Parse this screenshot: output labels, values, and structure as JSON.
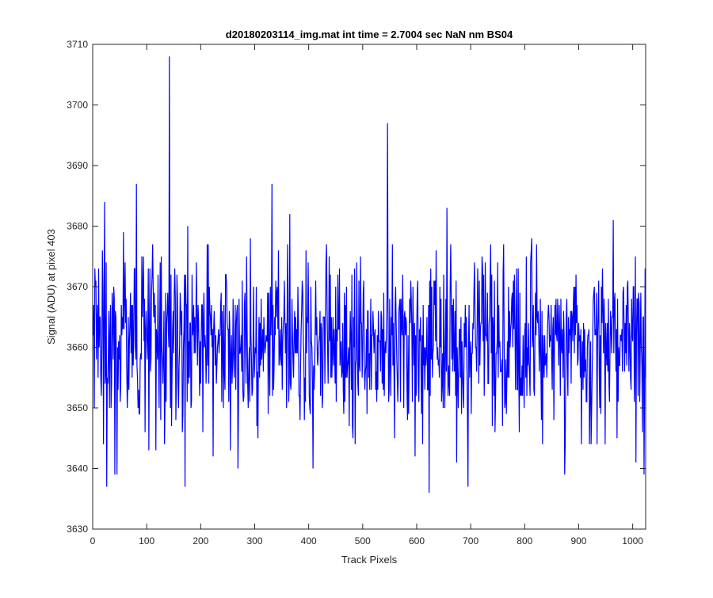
{
  "chart_data": {
    "type": "line",
    "title": "d20180203114_img.mat int time = 2.7004 sec  NaN nm BS04",
    "xlabel": "Track Pixels",
    "ylabel": "Signal (ADU) at pixel 403",
    "xlim": [
      0,
      1024
    ],
    "ylim": [
      3630,
      3710
    ],
    "xticks": [
      0,
      100,
      200,
      300,
      400,
      500,
      600,
      700,
      800,
      900,
      1000
    ],
    "yticks": [
      3630,
      3640,
      3650,
      3660,
      3670,
      3680,
      3690,
      3700,
      3710
    ],
    "grid": false,
    "legend": "none",
    "series": [
      {
        "color": "#0000ff",
        "noise": {
          "n": 1024,
          "mean": 3661,
          "min": 3644,
          "max": 3677
        },
        "peaks": [
          {
            "x": 3,
            "y": 3673
          },
          {
            "x": 6,
            "y": 3658
          },
          {
            "x": 10,
            "y": 3673
          },
          {
            "x": 14,
            "y": 3655
          },
          {
            "x": 17,
            "y": 3676
          },
          {
            "x": 19,
            "y": 3644
          },
          {
            "x": 21,
            "y": 3684
          },
          {
            "x": 25,
            "y": 3637
          },
          {
            "x": 30,
            "y": 3650
          },
          {
            "x": 35,
            "y": 3669
          },
          {
            "x": 40,
            "y": 3639
          },
          {
            "x": 44,
            "y": 3639
          },
          {
            "x": 50,
            "y": 3651
          },
          {
            "x": 56,
            "y": 3679
          },
          {
            "x": 63,
            "y": 3650
          },
          {
            "x": 69,
            "y": 3669
          },
          {
            "x": 76,
            "y": 3673
          },
          {
            "x": 80,
            "y": 3687
          },
          {
            "x": 90,
            "y": 3675
          },
          {
            "x": 96,
            "y": 3646
          },
          {
            "x": 103,
            "y": 3643
          },
          {
            "x": 110,
            "y": 3677
          },
          {
            "x": 116,
            "y": 3643
          },
          {
            "x": 124,
            "y": 3674
          },
          {
            "x": 132,
            "y": 3644
          },
          {
            "x": 141,
            "y": 3708
          },
          {
            "x": 143,
            "y": 3650
          },
          {
            "x": 150,
            "y": 3669
          },
          {
            "x": 158,
            "y": 3650
          },
          {
            "x": 165,
            "y": 3646
          },
          {
            "x": 170,
            "y": 3637
          },
          {
            "x": 175,
            "y": 3680
          },
          {
            "x": 182,
            "y": 3651
          },
          {
            "x": 196,
            "y": 3659
          },
          {
            "x": 211,
            "y": 3677
          },
          {
            "x": 222,
            "y": 3642
          },
          {
            "x": 236,
            "y": 3667
          },
          {
            "x": 254,
            "y": 3643
          },
          {
            "x": 268,
            "y": 3640
          },
          {
            "x": 291,
            "y": 3678
          },
          {
            "x": 305,
            "y": 3645
          },
          {
            "x": 318,
            "y": 3659
          },
          {
            "x": 331,
            "y": 3687
          },
          {
            "x": 351,
            "y": 3661
          },
          {
            "x": 364,
            "y": 3682
          },
          {
            "x": 381,
            "y": 3652
          },
          {
            "x": 394,
            "y": 3676
          },
          {
            "x": 407,
            "y": 3640
          },
          {
            "x": 418,
            "y": 3661
          },
          {
            "x": 432,
            "y": 3677
          },
          {
            "x": 450,
            "y": 3651
          },
          {
            "x": 467,
            "y": 3667
          },
          {
            "x": 481,
            "y": 3645
          },
          {
            "x": 485,
            "y": 3644
          },
          {
            "x": 495,
            "y": 3675
          },
          {
            "x": 507,
            "y": 3649
          },
          {
            "x": 520,
            "y": 3659
          },
          {
            "x": 545,
            "y": 3697
          },
          {
            "x": 547,
            "y": 3651
          },
          {
            "x": 572,
            "y": 3662
          },
          {
            "x": 596,
            "y": 3642
          },
          {
            "x": 608,
            "y": 3649
          },
          {
            "x": 622,
            "y": 3636
          },
          {
            "x": 641,
            "y": 3655
          },
          {
            "x": 655,
            "y": 3683
          },
          {
            "x": 673,
            "y": 3641
          },
          {
            "x": 694,
            "y": 3637
          },
          {
            "x": 718,
            "y": 3664
          },
          {
            "x": 738,
            "y": 3672
          },
          {
            "x": 755,
            "y": 3656
          },
          {
            "x": 790,
            "y": 3669
          },
          {
            "x": 812,
            "y": 3678
          },
          {
            "x": 830,
            "y": 3648
          },
          {
            "x": 855,
            "y": 3667
          },
          {
            "x": 873,
            "y": 3639
          },
          {
            "x": 900,
            "y": 3661
          },
          {
            "x": 922,
            "y": 3644
          },
          {
            "x": 944,
            "y": 3666
          },
          {
            "x": 963,
            "y": 3681
          },
          {
            "x": 970,
            "y": 3645
          },
          {
            "x": 1005,
            "y": 3641
          },
          {
            "x": 1020,
            "y": 3639
          },
          {
            "x": 1023,
            "y": 3655
          }
        ]
      }
    ]
  }
}
